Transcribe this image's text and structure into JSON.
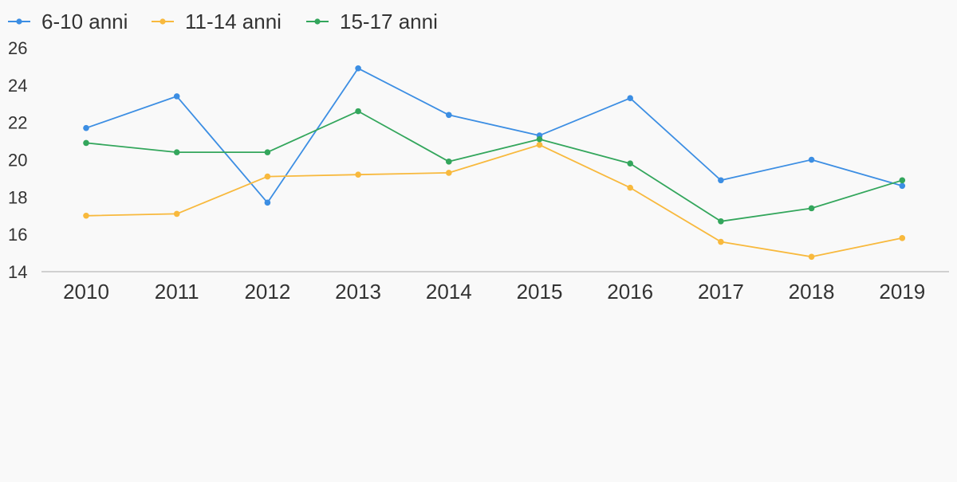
{
  "chart_data": {
    "type": "line",
    "title": "",
    "xlabel": "",
    "ylabel": "",
    "categories": [
      "2010",
      "2011",
      "2012",
      "2013",
      "2014",
      "2015",
      "2016",
      "2017",
      "2018",
      "2019"
    ],
    "ylim": [
      14,
      26
    ],
    "yticks": [
      "14",
      "16",
      "18",
      "20",
      "22",
      "24",
      "26"
    ],
    "grid": false,
    "legend_position": "top-left",
    "series": [
      {
        "name": "6-10 anni",
        "color": "#3c8ee3",
        "values": [
          21.7,
          23.4,
          17.7,
          24.9,
          22.4,
          21.3,
          23.3,
          18.9,
          20.0,
          18.6
        ]
      },
      {
        "name": "11-14 anni",
        "color": "#f8b93d",
        "values": [
          17.0,
          17.1,
          19.1,
          19.2,
          19.3,
          20.8,
          18.5,
          15.6,
          14.8,
          15.8
        ]
      },
      {
        "name": "15-17 anni",
        "color": "#33a65c",
        "values": [
          20.9,
          20.4,
          20.4,
          22.6,
          19.9,
          21.1,
          19.8,
          16.7,
          17.4,
          18.9
        ]
      }
    ]
  }
}
